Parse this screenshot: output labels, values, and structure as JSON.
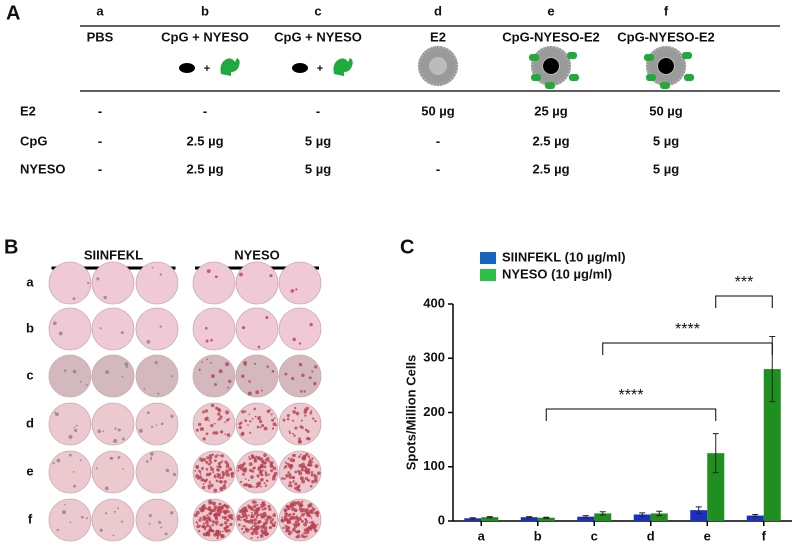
{
  "panel_a": {
    "label": "A",
    "columns": [
      {
        "letter": "a",
        "name": "PBS"
      },
      {
        "letter": "b",
        "name": "CpG + NYESO"
      },
      {
        "letter": "c",
        "name": "CpG + NYESO"
      },
      {
        "letter": "d",
        "name": "E2"
      },
      {
        "letter": "e",
        "name": "CpG-NYESO-E2"
      },
      {
        "letter": "f",
        "name": "CpG-NYESO-E2"
      }
    ],
    "rows": [
      {
        "name": "E2",
        "cells": [
          "-",
          "-",
          "-",
          "50 µg",
          "25 µg",
          "50 µg"
        ]
      },
      {
        "name": "CpG",
        "cells": [
          "-",
          "2.5 µg",
          "5 µg",
          "-",
          "2.5 µg",
          "5 µg"
        ]
      },
      {
        "name": "NYESO",
        "cells": [
          "-",
          "2.5 µg",
          "5 µg",
          "-",
          "2.5 µg",
          "5 µg"
        ]
      }
    ]
  },
  "panel_b": {
    "label": "B",
    "groups": [
      "SIINFEKL",
      "NYESO"
    ],
    "rows": [
      "a",
      "b",
      "c",
      "d",
      "e",
      "f"
    ]
  },
  "chart_data": {
    "type": "bar",
    "label": "C",
    "y_label": "Spots/Million Cells",
    "categories": [
      "a",
      "b",
      "c",
      "d",
      "e",
      "f"
    ],
    "series": [
      {
        "name": "SIINFEKL (10 µg/ml)",
        "color": "#1c2fc4",
        "legend_color": "#1565c0",
        "values": [
          5,
          7,
          8,
          12,
          20,
          10
        ],
        "errors": [
          1,
          1,
          2,
          3,
          6,
          2
        ]
      },
      {
        "name": "NYESO (10 µg/ml)",
        "color": "#1f8f1f",
        "legend_color": "#2ebf4a",
        "values": [
          7,
          6,
          14,
          14,
          125,
          280
        ],
        "errors": [
          1,
          1,
          3,
          4,
          36,
          60
        ]
      }
    ],
    "ylim": [
      0,
      400
    ],
    "yticks": [
      0,
      100,
      200,
      300,
      400
    ],
    "significance": [
      {
        "from": "b",
        "to": "e",
        "label": "****"
      },
      {
        "from": "c",
        "to": "f",
        "label": "****"
      },
      {
        "from": "e",
        "to": "f",
        "label": "***"
      }
    ]
  }
}
